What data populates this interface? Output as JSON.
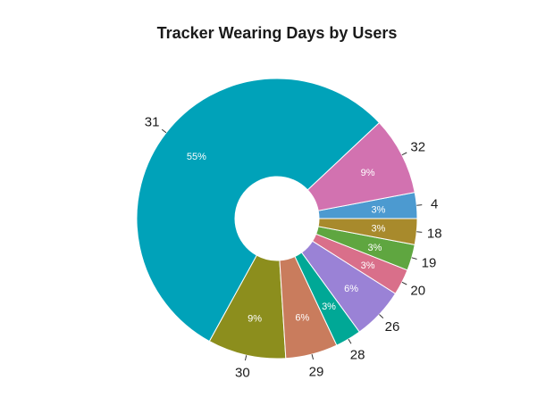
{
  "chart_data": {
    "type": "pie",
    "subtype": "donut",
    "title": "Tracker Wearing Days by Users",
    "labels": [
      "4",
      "32",
      "31",
      "30",
      "29",
      "28",
      "26",
      "20",
      "19",
      "18"
    ],
    "values": [
      3,
      9,
      55,
      9,
      6,
      3,
      6,
      3,
      3,
      3
    ],
    "percent_labels": [
      "3%",
      "9%",
      "55%",
      "9%",
      "6%",
      "3%",
      "6%",
      "3%",
      "3%",
      "3%"
    ],
    "colors": [
      "#4C9AD0",
      "#D272B0",
      "#00A2B9",
      "#8C8E1D",
      "#C97C5D",
      "#00A896",
      "#9A82D6",
      "#D96F8A",
      "#5FA640",
      "#A88A2C"
    ],
    "legend": "none"
  }
}
